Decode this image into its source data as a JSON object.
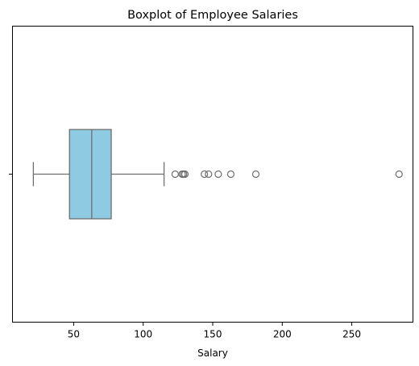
{
  "chart_data": {
    "type": "boxplot",
    "orientation": "horizontal",
    "title": "Boxplot of Employee Salaries",
    "xlabel": "Salary",
    "ylabel": "",
    "xlim": [
      6,
      294
    ],
    "xticks": [
      50,
      100,
      150,
      200,
      250
    ],
    "xtick_labels": [
      "50",
      "100",
      "150",
      "200",
      "250"
    ],
    "grid": false,
    "box": {
      "whisker_low": 21,
      "q1": 47,
      "median": 63,
      "q3": 77,
      "whisker_high": 115,
      "outliers": [
        123,
        128,
        129,
        130,
        144,
        147,
        154,
        163,
        181,
        284
      ]
    },
    "colors": {
      "box_fill": "#8ecae2",
      "line": "#6e6e6e"
    }
  }
}
